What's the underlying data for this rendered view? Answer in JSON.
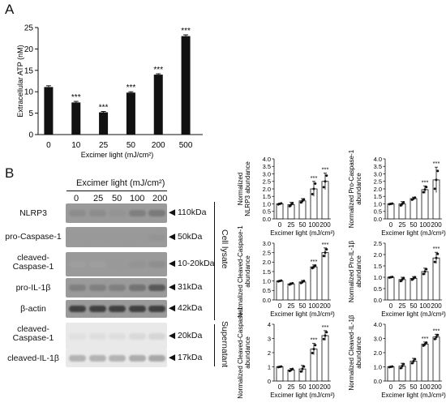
{
  "panel_a": {
    "letter": "A",
    "chart_data": {
      "type": "bar",
      "categories": [
        "0",
        "10",
        "25",
        "50",
        "200",
        "500"
      ],
      "values": [
        11.1,
        7.5,
        5.2,
        9.8,
        14.0,
        23.0
      ],
      "errors": [
        0.3,
        0.25,
        0.2,
        0.2,
        0.2,
        0.3
      ],
      "significance": [
        "",
        "***",
        "***",
        "***",
        "***",
        "***"
      ],
      "xlabel": "Excimer light (mJ/cm²)",
      "ylabel": "Extracellular ATP (nM)",
      "ylim": [
        0,
        25
      ],
      "yticks": [
        0,
        5,
        10,
        15,
        20,
        25
      ]
    }
  },
  "panel_b": {
    "letter": "B",
    "blot_header": "Excimer light (mJ/cm²)",
    "doses": [
      "0",
      "25",
      "50",
      "100",
      "200"
    ],
    "blots": [
      {
        "name": "NLRP3",
        "kda": "◀ 110kDa",
        "tone": [
          0.55,
          0.55,
          0.58,
          0.5,
          0.48
        ]
      },
      {
        "name": "pro-Caspase-1",
        "kda": "◀ 50kDa",
        "tone": [
          0.6,
          0.6,
          0.6,
          0.6,
          0.58
        ]
      },
      {
        "name": "cleaved-\nCaspase-1",
        "kda": "◀ 10-20kDa",
        "tone": [
          0.62,
          0.62,
          0.6,
          0.58,
          0.56
        ]
      },
      {
        "name": "pro-IL-1β",
        "kda": "◀ 31kDa",
        "tone": [
          0.5,
          0.5,
          0.5,
          0.45,
          0.35
        ]
      },
      {
        "name": "β-actin",
        "kda": "◀ 42kDa",
        "tone": [
          0.25,
          0.25,
          0.25,
          0.25,
          0.25
        ]
      },
      {
        "name": "cleaved-\nCaspase-1",
        "kda": "◀ 20kDa",
        "tone": [
          0.88,
          0.87,
          0.87,
          0.85,
          0.84
        ]
      },
      {
        "name": "cleaved-IL-1β",
        "kda": "◀ 17kDa",
        "tone": [
          0.7,
          0.7,
          0.7,
          0.68,
          0.66
        ]
      }
    ],
    "group_labels": {
      "cell_lysate": "Cell lysate",
      "supernatant": "Supernatant"
    },
    "chart_data": [
      {
        "type": "bar",
        "categories": [
          "0",
          "25",
          "50",
          "100",
          "200"
        ],
        "values": [
          1.0,
          0.95,
          1.2,
          2.0,
          2.5
        ],
        "errors": [
          0.05,
          0.15,
          0.15,
          0.5,
          0.55
        ],
        "significance": [
          "",
          "",
          "",
          "***",
          "***"
        ],
        "ylabel": "Normalized NLRP3 abundance",
        "xlabel": "Excimer light (mJ/cm²)",
        "ylim": [
          0,
          4.0
        ],
        "yticks": [
          "0.0",
          "0.5",
          "1.0",
          "1.5",
          "2.0",
          "2.5",
          "3.0",
          "3.5",
          "4.0"
        ]
      },
      {
        "type": "bar",
        "categories": [
          "0",
          "25",
          "50",
          "100",
          "200"
        ],
        "values": [
          1.0,
          1.0,
          1.35,
          1.95,
          2.6
        ],
        "errors": [
          0.03,
          0.15,
          0.1,
          0.25,
          0.85
        ],
        "significance": [
          "",
          "",
          "",
          "***",
          "***"
        ],
        "ylabel": "Normalized Pro-Caspase-1 abundance",
        "xlabel": "Excimer light (mJ/cm²)",
        "ylim": [
          0,
          4.0
        ],
        "yticks": [
          "0.0",
          "0.5",
          "1.0",
          "1.5",
          "2.0",
          "2.5",
          "3.0",
          "3.5",
          "4.0"
        ]
      },
      {
        "type": "bar",
        "categories": [
          "0",
          "25",
          "50",
          "100",
          "200"
        ],
        "values": [
          1.0,
          0.85,
          0.95,
          1.75,
          2.5
        ],
        "errors": [
          0.03,
          0.05,
          0.08,
          0.1,
          0.25
        ],
        "significance": [
          "",
          "",
          "",
          "***",
          "***"
        ],
        "ylabel": "Normalized Cleaved-Caspase-1 abundance",
        "xlabel": "Excimer light (mJ/cm²)",
        "ylim": [
          0,
          3.0
        ],
        "yticks": [
          "0.0",
          "0.5",
          "1.0",
          "1.5",
          "2.0",
          "2.5",
          "3.0"
        ]
      },
      {
        "type": "bar",
        "categories": [
          "0",
          "25",
          "50",
          "100",
          "200"
        ],
        "values": [
          1.0,
          0.9,
          0.95,
          1.25,
          1.85
        ],
        "errors": [
          0.02,
          0.1,
          0.08,
          0.15,
          0.25
        ],
        "significance": [
          "",
          "",
          "",
          "",
          "***"
        ],
        "ylabel": "Normalized Pro-IL-1β abundance",
        "xlabel": "Excimer light (mJ/cm²)",
        "ylim": [
          0,
          2.5
        ],
        "yticks": [
          "0.0",
          "0.5",
          "1.0",
          "1.5",
          "2.0",
          "2.5"
        ]
      },
      {
        "type": "bar",
        "categories": [
          "0",
          "25",
          "50",
          "100",
          "200"
        ],
        "values": [
          1.0,
          0.78,
          0.85,
          2.25,
          3.2
        ],
        "errors": [
          0.03,
          0.1,
          0.25,
          0.4,
          0.35
        ],
        "significance": [
          "",
          "",
          "",
          "***",
          "***"
        ],
        "ylabel": "Normalized Cleaved-Caspase-1 abundance",
        "xlabel": "Excimer light (mJ/cm²)",
        "ylim": [
          0,
          4.0
        ],
        "yticks": [
          "0",
          "1",
          "2",
          "3",
          "4"
        ]
      },
      {
        "type": "bar",
        "categories": [
          "0",
          "25",
          "50",
          "100",
          "200"
        ],
        "values": [
          1.0,
          1.05,
          1.4,
          2.6,
          3.1
        ],
        "errors": [
          0.03,
          0.2,
          0.2,
          0.15,
          0.2
        ],
        "significance": [
          "",
          "",
          "",
          "***",
          "***"
        ],
        "ylabel": "Normalized Cleaved-IL-1β abundance",
        "xlabel": "Excimer light (mJ/cm²)",
        "ylim": [
          0,
          4.0
        ],
        "yticks": [
          "0.0",
          "1.0",
          "2.0",
          "3.0",
          "4.0"
        ]
      }
    ]
  }
}
